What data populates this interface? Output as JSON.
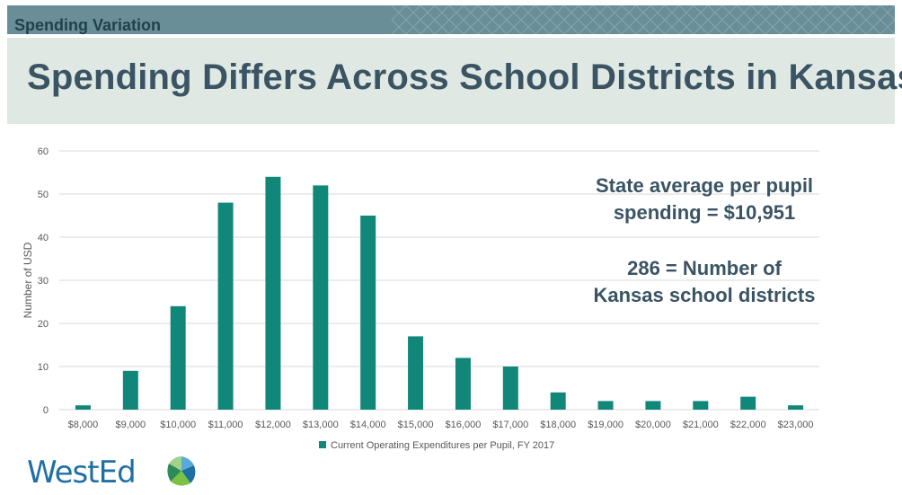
{
  "header": {
    "section_label": "Spending Variation",
    "title": "Spending Differs Across School Districts in Kansas",
    "bar_color": "#6a8e98",
    "band_color": "#dfe8e3"
  },
  "annotations": {
    "line1": "State average per pupil",
    "line2": "spending = $10,951",
    "line3": "286 = Number of",
    "line4": "Kansas school districts"
  },
  "logo": {
    "text": "WestEd",
    "icon": "wested-leaf-icon"
  },
  "chart_data": {
    "type": "bar",
    "categories": [
      "$8,000",
      "$9,000",
      "$10,000",
      "$11,000",
      "$12,000",
      "$13,000",
      "$14,000",
      "$15,000",
      "$16,000",
      "$17,000",
      "$18,000",
      "$19,000",
      "$20,000",
      "$21,000",
      "$22,000",
      "$23,000"
    ],
    "series": [
      {
        "name": "Current Operating Expenditures per Pupil, FY 2017",
        "values": [
          1,
          9,
          24,
          48,
          54,
          52,
          45,
          17,
          12,
          10,
          4,
          2,
          2,
          2,
          3,
          1
        ]
      }
    ],
    "ylabel": "Number of USD",
    "xlabel": "",
    "ylim": [
      0,
      60
    ],
    "yticks": [
      0,
      10,
      20,
      30,
      40,
      50,
      60
    ],
    "grid": true,
    "legend": "bottom-center",
    "bar_color": "#11877a",
    "axis_text_color": "#595959",
    "grid_color": "#d9d9d9"
  }
}
